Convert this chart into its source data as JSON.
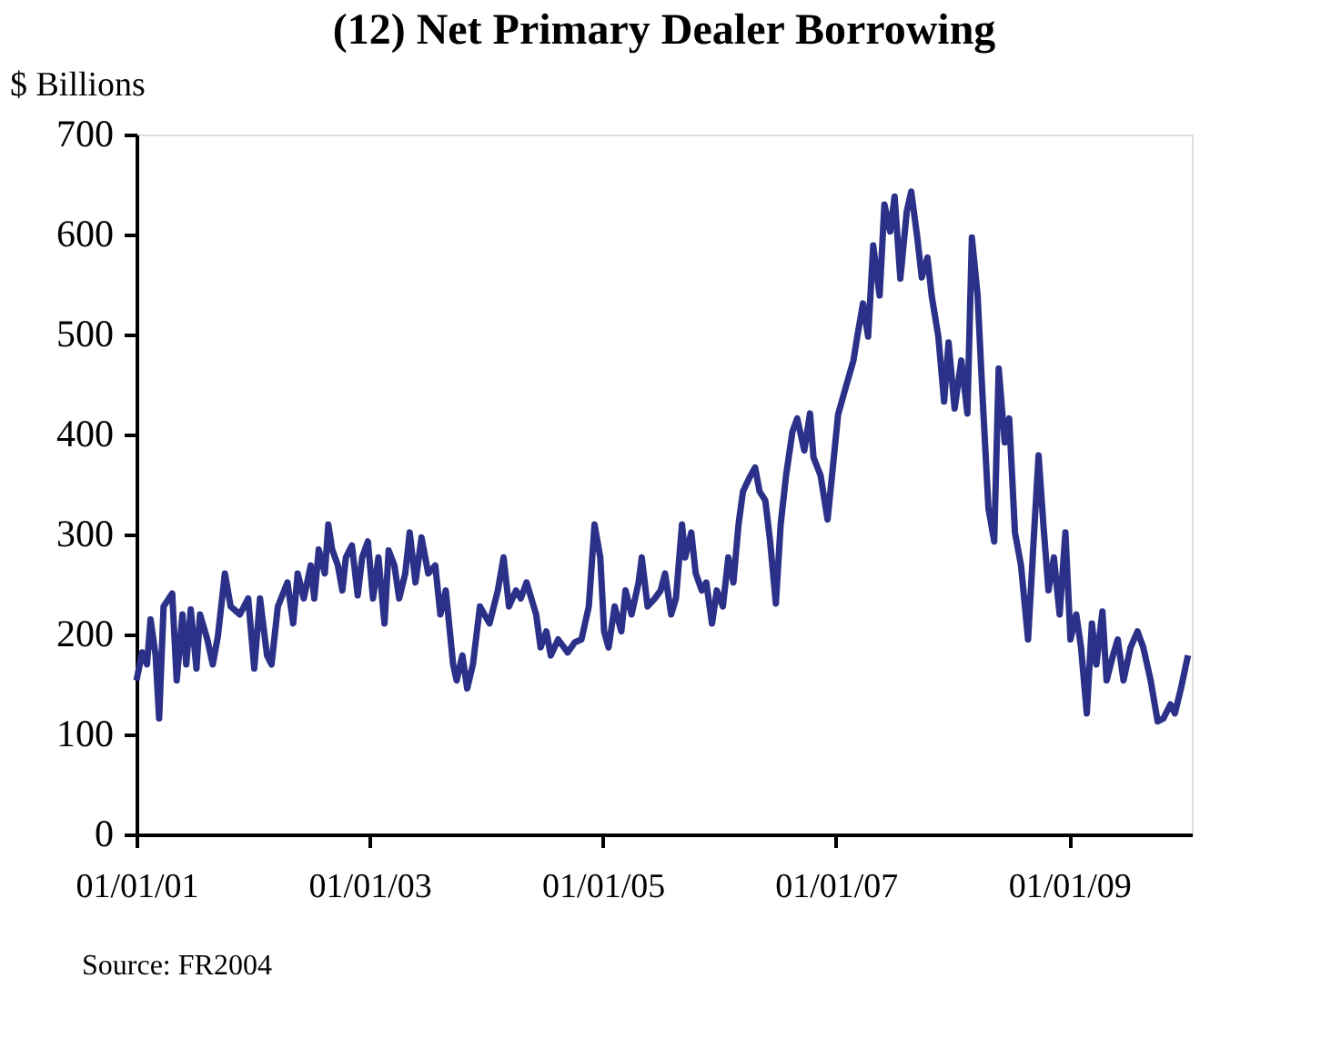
{
  "chart_data": {
    "type": "line",
    "title": "(12) Net Primary Dealer Borrowing",
    "ylabel": "$ Billions",
    "annotations": [
      "Source: FR2004"
    ],
    "xlim": [
      "2001-01-01",
      "2010-01-20"
    ],
    "xticks": [
      {
        "value": "2001-01-01",
        "label": "01/01/01"
      },
      {
        "value": "2003-01-01",
        "label": "01/01/03"
      },
      {
        "value": "2005-01-01",
        "label": "01/01/05"
      },
      {
        "value": "2007-01-01",
        "label": "01/01/07"
      },
      {
        "value": "2009-01-01",
        "label": "01/01/09"
      }
    ],
    "ylim": [
      0,
      700
    ],
    "yticks": [
      0,
      100,
      200,
      300,
      400,
      500,
      600,
      700
    ],
    "grid": false,
    "line_style": "solid",
    "marker": "none",
    "x": [
      "2001-01-01",
      "2001-01-19",
      "2001-02-03",
      "2001-02-14",
      "2001-03-02",
      "2001-03-13",
      "2001-03-27",
      "2001-04-23",
      "2001-05-07",
      "2001-05-25",
      "2001-06-06",
      "2001-06-20",
      "2001-07-08",
      "2001-07-19",
      "2001-08-11",
      "2001-08-28",
      "2001-09-13",
      "2001-10-05",
      "2001-10-23",
      "2001-11-21",
      "2001-12-17",
      "2002-01-05",
      "2002-01-23",
      "2002-02-14",
      "2002-02-28",
      "2002-03-20",
      "2002-04-19",
      "2002-05-07",
      "2002-05-21",
      "2002-06-09",
      "2002-07-01",
      "2002-07-12",
      "2002-07-26",
      "2002-08-14",
      "2002-08-25",
      "2002-09-06",
      "2002-09-24",
      "2002-10-08",
      "2002-10-19",
      "2002-11-07",
      "2002-11-25",
      "2002-12-09",
      "2002-12-27",
      "2003-01-12",
      "2003-01-29",
      "2003-02-17",
      "2003-03-02",
      "2003-03-20",
      "2003-04-04",
      "2003-04-23",
      "2003-05-07",
      "2003-05-25",
      "2003-06-13",
      "2003-07-04",
      "2003-07-26",
      "2003-08-11",
      "2003-08-28",
      "2003-09-20",
      "2003-10-01",
      "2003-10-19",
      "2003-11-03",
      "2003-11-21",
      "2003-12-13",
      "2004-01-12",
      "2004-02-07",
      "2004-02-25",
      "2004-03-13",
      "2004-04-04",
      "2004-04-19",
      "2004-05-07",
      "2004-06-06",
      "2004-06-20",
      "2004-07-08",
      "2004-07-22",
      "2004-08-14",
      "2004-09-13",
      "2004-10-05",
      "2004-10-26",
      "2004-11-18",
      "2004-12-06",
      "2004-12-24",
      "2005-01-05",
      "2005-01-19",
      "2005-02-07",
      "2005-02-28",
      "2005-03-13",
      "2005-04-01",
      "2005-04-23",
      "2005-05-03",
      "2005-05-21",
      "2005-06-13",
      "2005-07-01",
      "2005-07-15",
      "2005-08-03",
      "2005-08-18",
      "2005-09-06",
      "2005-09-16",
      "2005-10-05",
      "2005-10-19",
      "2005-11-07",
      "2005-11-21",
      "2005-12-09",
      "2005-12-24",
      "2006-01-12",
      "2006-01-29",
      "2006-02-14",
      "2006-03-02",
      "2006-03-16",
      "2006-04-04",
      "2006-04-23",
      "2006-05-07",
      "2006-05-25",
      "2006-06-09",
      "2006-06-27",
      "2006-07-12",
      "2006-07-29",
      "2006-08-18",
      "2006-09-02",
      "2006-09-24",
      "2006-10-12",
      "2006-10-23",
      "2006-11-14",
      "2006-12-06",
      "2006-12-24",
      "2007-01-08",
      "2007-01-29",
      "2007-02-25",
      "2007-03-09",
      "2007-03-27",
      "2007-04-12",
      "2007-04-28",
      "2007-05-18",
      "2007-06-02",
      "2007-06-20",
      "2007-07-04",
      "2007-07-22",
      "2007-08-11",
      "2007-08-25",
      "2007-09-13",
      "2007-09-27",
      "2007-10-15",
      "2007-10-28",
      "2007-11-18",
      "2007-12-06",
      "2007-12-20",
      "2008-01-08",
      "2008-01-29",
      "2008-02-17",
      "2008-03-02",
      "2008-03-20",
      "2008-04-04",
      "2008-04-23",
      "2008-05-11",
      "2008-05-25",
      "2008-06-13",
      "2008-06-27",
      "2008-07-15",
      "2008-08-03",
      "2008-08-25",
      "2008-09-09",
      "2008-09-27",
      "2008-10-12",
      "2008-10-28",
      "2008-11-14",
      "2008-12-02",
      "2008-12-20",
      "2009-01-05",
      "2009-01-23",
      "2009-02-07",
      "2009-02-25",
      "2009-03-13",
      "2009-03-27",
      "2009-04-15",
      "2009-04-28",
      "2009-05-18",
      "2009-06-02",
      "2009-06-20",
      "2009-07-12",
      "2009-08-03",
      "2009-08-21",
      "2009-09-13",
      "2009-10-05",
      "2009-10-23",
      "2009-11-14",
      "2009-11-28",
      "2009-12-17",
      "2010-01-08"
    ],
    "series": [
      {
        "color": "#2b3188",
        "values": [
          154,
          182,
          170,
          215,
          179,
          116,
          228,
          241,
          154,
          220,
          170,
          225,
          166,
          220,
          195,
          170,
          198,
          261,
          228,
          220,
          236,
          166,
          236,
          179,
          170,
          228,
          252,
          211,
          261,
          236,
          269,
          236,
          285,
          261,
          310,
          285,
          269,
          244,
          277,
          289,
          239,
          277,
          293,
          236,
          277,
          211,
          284,
          269,
          236,
          261,
          302,
          252,
          297,
          261,
          269,
          220,
          244,
          170,
          154,
          179,
          146,
          170,
          228,
          211,
          244,
          277,
          228,
          244,
          236,
          252,
          220,
          187,
          203,
          179,
          195,
          182,
          192,
          195,
          228,
          310,
          277,
          203,
          187,
          228,
          203,
          244,
          220,
          252,
          277,
          228,
          236,
          244,
          261,
          220,
          236,
          310,
          277,
          302,
          261,
          244,
          252,
          211,
          244,
          228,
          277,
          252,
          310,
          343,
          356,
          367,
          343,
          334,
          293,
          231,
          310,
          359,
          403,
          416,
          384,
          421,
          377,
          359,
          315,
          372,
          420,
          444,
          474,
          498,
          531,
          498,
          589,
          539,
          630,
          603,
          638,
          556,
          623,
          643,
          597,
          557,
          577,
          539,
          498,
          433,
          492,
          426,
          474,
          421,
          597,
          539,
          441,
          326,
          293,
          466,
          392,
          416,
          302,
          269,
          195,
          280,
          379,
          310,
          244,
          277,
          220,
          302,
          195,
          220,
          187,
          121,
          211,
          170,
          223,
          154,
          179,
          195,
          154,
          187,
          203,
          187,
          154,
          113,
          116,
          130,
          121,
          146,
          179
        ]
      }
    ]
  }
}
